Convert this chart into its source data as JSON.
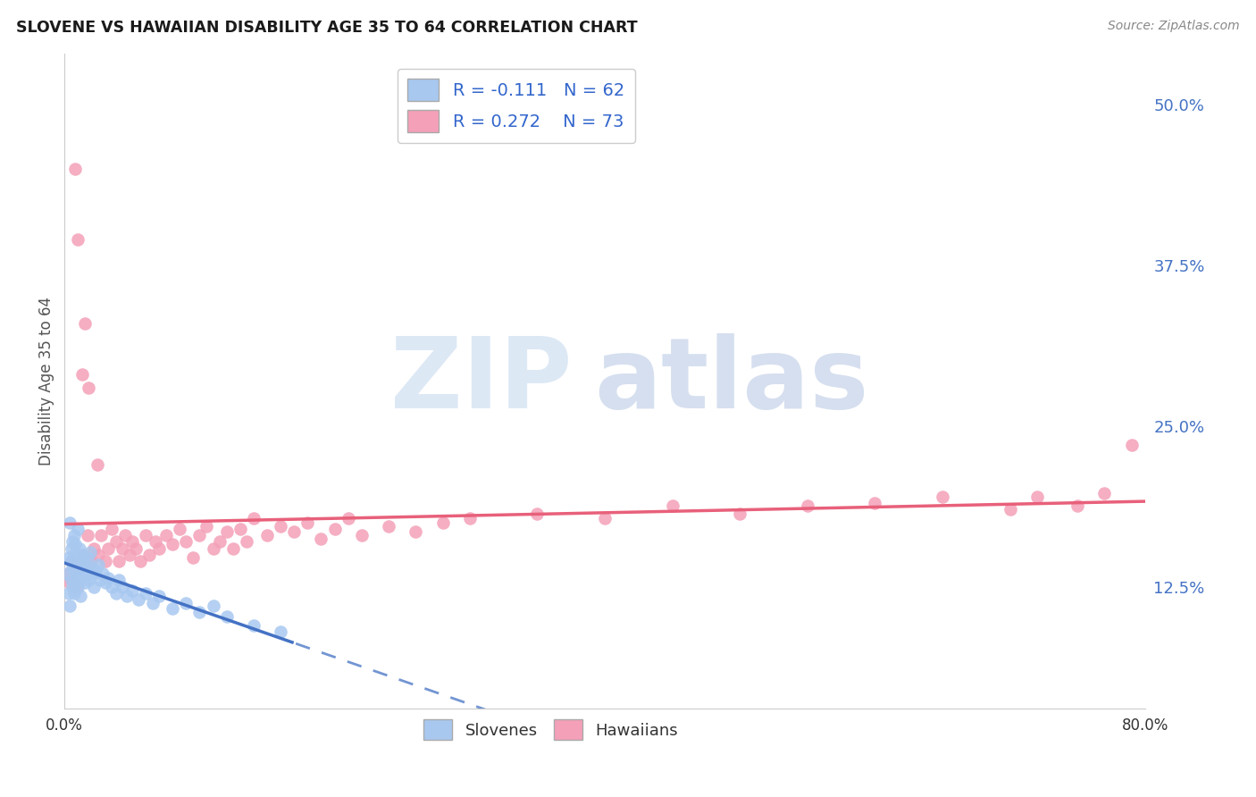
{
  "title": "SLOVENE VS HAWAIIAN DISABILITY AGE 35 TO 64 CORRELATION CHART",
  "source": "Source: ZipAtlas.com",
  "ylabel": "Disability Age 35 to 64",
  "ytick_labels": [
    "12.5%",
    "25.0%",
    "37.5%",
    "50.0%"
  ],
  "ytick_values": [
    0.125,
    0.25,
    0.375,
    0.5
  ],
  "xmin": 0.0,
  "xmax": 0.8,
  "ymin": 0.03,
  "ymax": 0.54,
  "slovene_color": "#a8c8f0",
  "hawaiian_color": "#f4a0b8",
  "slovene_R": -0.111,
  "slovene_N": 62,
  "hawaiian_R": 0.272,
  "hawaiian_N": 73,
  "slovene_line_color": "#4472c4",
  "hawaiian_line_color": "#e8607a",
  "grid_color": "#d0d0d0",
  "background_color": "#ffffff",
  "slovene_x": [
    0.002,
    0.003,
    0.003,
    0.004,
    0.004,
    0.005,
    0.005,
    0.005,
    0.006,
    0.006,
    0.006,
    0.007,
    0.007,
    0.007,
    0.007,
    0.008,
    0.008,
    0.008,
    0.009,
    0.009,
    0.01,
    0.01,
    0.01,
    0.011,
    0.011,
    0.012,
    0.012,
    0.013,
    0.013,
    0.014,
    0.015,
    0.015,
    0.016,
    0.017,
    0.018,
    0.019,
    0.02,
    0.021,
    0.022,
    0.023,
    0.025,
    0.026,
    0.028,
    0.03,
    0.032,
    0.035,
    0.038,
    0.04,
    0.043,
    0.046,
    0.05,
    0.055,
    0.06,
    0.065,
    0.07,
    0.08,
    0.09,
    0.1,
    0.11,
    0.12,
    0.14,
    0.16
  ],
  "slovene_y": [
    0.135,
    0.12,
    0.148,
    0.175,
    0.11,
    0.145,
    0.13,
    0.155,
    0.14,
    0.125,
    0.16,
    0.138,
    0.15,
    0.12,
    0.165,
    0.143,
    0.128,
    0.158,
    0.135,
    0.148,
    0.17,
    0.125,
    0.145,
    0.155,
    0.132,
    0.14,
    0.118,
    0.15,
    0.138,
    0.145,
    0.142,
    0.128,
    0.135,
    0.148,
    0.13,
    0.152,
    0.14,
    0.135,
    0.125,
    0.138,
    0.142,
    0.13,
    0.135,
    0.128,
    0.132,
    0.125,
    0.12,
    0.13,
    0.125,
    0.118,
    0.122,
    0.115,
    0.12,
    0.112,
    0.118,
    0.108,
    0.112,
    0.105,
    0.11,
    0.102,
    0.095,
    0.09
  ],
  "hawaiian_x": [
    0.003,
    0.004,
    0.005,
    0.006,
    0.007,
    0.008,
    0.009,
    0.01,
    0.012,
    0.013,
    0.014,
    0.015,
    0.016,
    0.017,
    0.018,
    0.02,
    0.022,
    0.024,
    0.025,
    0.027,
    0.03,
    0.032,
    0.035,
    0.038,
    0.04,
    0.043,
    0.045,
    0.048,
    0.05,
    0.053,
    0.056,
    0.06,
    0.063,
    0.067,
    0.07,
    0.075,
    0.08,
    0.085,
    0.09,
    0.095,
    0.1,
    0.105,
    0.11,
    0.115,
    0.12,
    0.125,
    0.13,
    0.135,
    0.14,
    0.15,
    0.16,
    0.17,
    0.18,
    0.19,
    0.2,
    0.21,
    0.22,
    0.24,
    0.26,
    0.28,
    0.3,
    0.35,
    0.4,
    0.45,
    0.5,
    0.55,
    0.6,
    0.65,
    0.7,
    0.72,
    0.75,
    0.77,
    0.79
  ],
  "hawaiian_y": [
    0.135,
    0.128,
    0.145,
    0.13,
    0.138,
    0.45,
    0.125,
    0.395,
    0.14,
    0.29,
    0.15,
    0.33,
    0.148,
    0.165,
    0.28,
    0.145,
    0.155,
    0.22,
    0.15,
    0.165,
    0.145,
    0.155,
    0.17,
    0.16,
    0.145,
    0.155,
    0.165,
    0.15,
    0.16,
    0.155,
    0.145,
    0.165,
    0.15,
    0.16,
    0.155,
    0.165,
    0.158,
    0.17,
    0.16,
    0.148,
    0.165,
    0.172,
    0.155,
    0.16,
    0.168,
    0.155,
    0.17,
    0.16,
    0.178,
    0.165,
    0.172,
    0.168,
    0.175,
    0.162,
    0.17,
    0.178,
    0.165,
    0.172,
    0.168,
    0.175,
    0.178,
    0.182,
    0.178,
    0.188,
    0.182,
    0.188,
    0.19,
    0.195,
    0.185,
    0.195,
    0.188,
    0.198,
    0.235
  ]
}
